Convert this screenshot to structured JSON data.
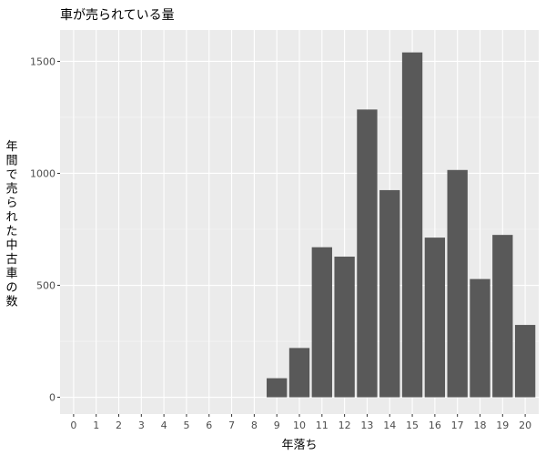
{
  "chart_data": {
    "type": "bar",
    "title": "車が売られている量",
    "xlabel": "年落ち",
    "ylabel": "年間で売られた中古車の数",
    "categories": [
      "0",
      "1",
      "2",
      "3",
      "4",
      "5",
      "6",
      "7",
      "8",
      "9",
      "10",
      "11",
      "12",
      "13",
      "14",
      "15",
      "16",
      "17",
      "18",
      "19",
      "20"
    ],
    "values": [
      0,
      0,
      0,
      0,
      0,
      0,
      0,
      0,
      0,
      85,
      220,
      670,
      628,
      1285,
      925,
      1540,
      713,
      1015,
      528,
      725,
      323
    ],
    "yticks": [
      0,
      500,
      1000,
      1500
    ],
    "ylim": [
      -75,
      1640
    ],
    "grid": true,
    "colors": {
      "panel": "#ebebeb",
      "grid_major": "#ffffff",
      "bar": "#595959",
      "tick_label": "#4d4d4d"
    }
  }
}
